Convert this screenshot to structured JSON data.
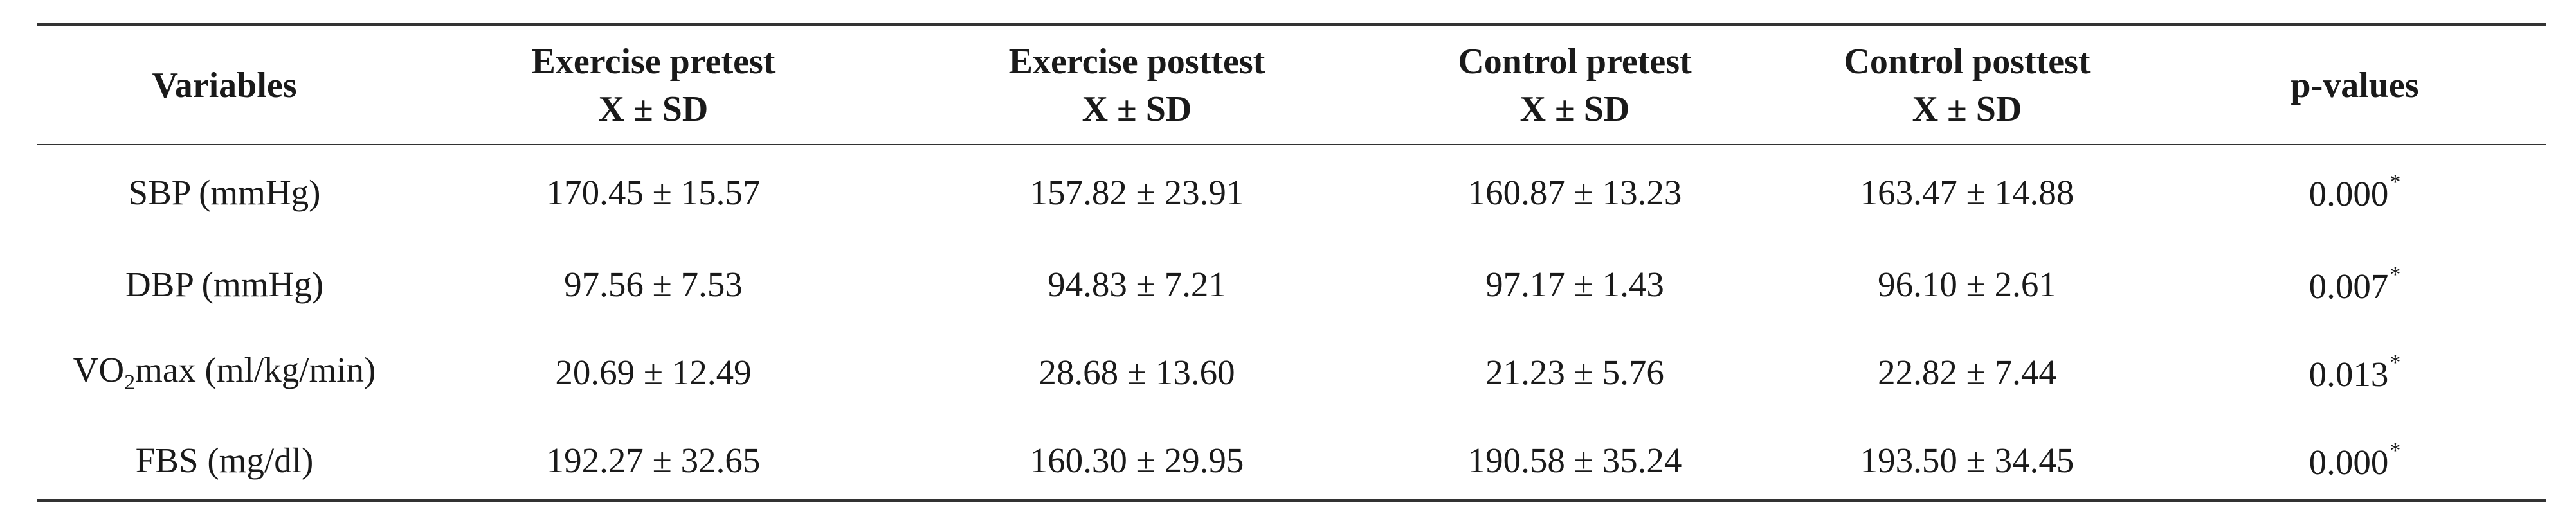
{
  "table": {
    "headers": {
      "variables": "Variables",
      "exercise_pretest": {
        "title": "Exercise pretest",
        "stat": "X ± SD"
      },
      "exercise_posttest": {
        "title": "Exercise posttest",
        "stat": "X ± SD"
      },
      "control_pretest": {
        "title": "Control pretest",
        "stat": "X ± SD"
      },
      "control_posttest": {
        "title": "Control posttest",
        "stat": "X ± SD"
      },
      "p_values": "p-values"
    },
    "rows": [
      {
        "variable": "SBP (mmHg)",
        "exercise_pretest": "170.45 ± 15.57",
        "exercise_posttest": "157.82 ± 23.91",
        "control_pretest": "160.87 ± 13.23",
        "control_posttest": "163.47 ± 14.88",
        "p_value": "0.000",
        "p_mark": "*"
      },
      {
        "variable": "DBP (mmHg)",
        "exercise_pretest": "97.56 ± 7.53",
        "exercise_posttest": "94.83 ± 7.21",
        "control_pretest": "97.17 ± 1.43",
        "control_posttest": "96.10 ± 2.61",
        "p_value": "0.007",
        "p_mark": "*"
      },
      {
        "variable_prefix": "VO",
        "variable_subscript": "2",
        "variable_suffix": "max (ml/kg/min)",
        "exercise_pretest": "20.69 ± 12.49",
        "exercise_posttest": "28.68 ± 13.60",
        "control_pretest": "21.23 ± 5.76",
        "control_posttest": "22.82 ± 7.44",
        "p_value": "0.013",
        "p_mark": "*"
      },
      {
        "variable": "FBS (mg/dl)",
        "exercise_pretest": "192.27 ± 32.65",
        "exercise_posttest": "160.30 ± 29.95",
        "control_pretest": "190.58 ± 35.24",
        "control_posttest": "193.50 ± 34.45",
        "p_value": "0.000",
        "p_mark": "*"
      }
    ]
  }
}
